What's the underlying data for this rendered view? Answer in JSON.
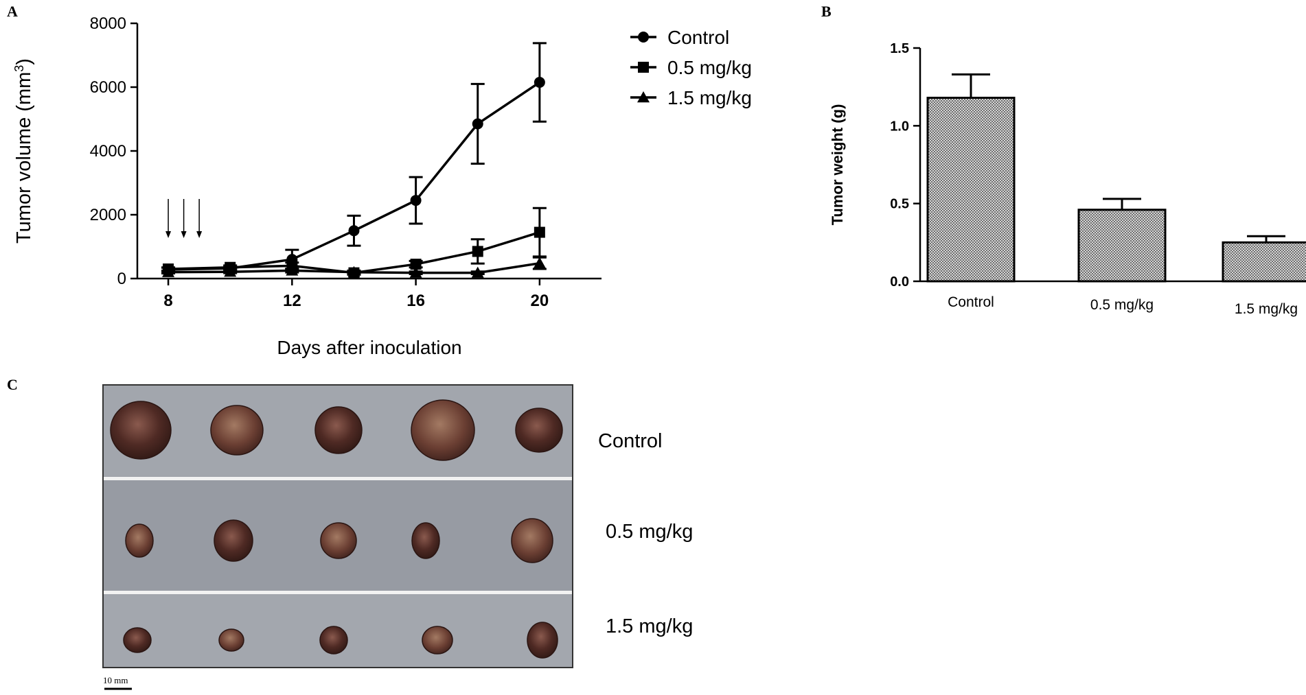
{
  "panels": {
    "a": "A",
    "b": "B",
    "c": "C"
  },
  "chart_data": [
    {
      "type": "line",
      "panel": "A",
      "title": "",
      "xlabel": "Days after inoculation",
      "ylabel": "Tumor volume (mm3)",
      "ylabel_main": "Tumor volume (mm",
      "ylabel_sup": "3",
      "ylabel_close": ")",
      "xlim": [
        7,
        22
      ],
      "ylim": [
        0,
        8000
      ],
      "xticks": [
        8,
        12,
        16,
        20
      ],
      "yticks": [
        0,
        2000,
        4000,
        6000,
        8000
      ],
      "arrows_at_days": [
        8,
        8.5,
        9
      ],
      "series": [
        {
          "name": "Control",
          "marker": "circle",
          "x": [
            8,
            10,
            12,
            14,
            16,
            18,
            20
          ],
          "values": [
            280,
            320,
            600,
            1500,
            2450,
            4850,
            6150
          ],
          "errors": [
            60,
            60,
            300,
            470,
            730,
            1250,
            1230
          ]
        },
        {
          "name": "0.5 mg/kg",
          "marker": "square",
          "x": [
            8,
            10,
            12,
            14,
            16,
            18,
            20
          ],
          "values": [
            300,
            350,
            400,
            180,
            450,
            850,
            1450
          ],
          "errors": [
            50,
            60,
            100,
            60,
            100,
            380,
            760
          ]
        },
        {
          "name": "1.5 mg/kg",
          "marker": "triangle",
          "x": [
            8,
            10,
            12,
            14,
            16,
            18,
            20
          ],
          "values": [
            200,
            210,
            250,
            200,
            180,
            180,
            480
          ],
          "errors": [
            40,
            40,
            60,
            50,
            40,
            40,
            180
          ]
        }
      ]
    },
    {
      "type": "bar",
      "panel": "B",
      "title": "",
      "xlabel": "",
      "ylabel": "Tumor weight (g)",
      "ylim": [
        0,
        1.5
      ],
      "yticks": [
        "0.0",
        "0.5",
        "1.0",
        "1.5"
      ],
      "categories": [
        "Control",
        "0.5 mg/kg",
        "1.5 mg/kg"
      ],
      "values": [
        1.18,
        0.46,
        0.25
      ],
      "errors": [
        0.15,
        0.07,
        0.04
      ]
    }
  ],
  "photo": {
    "rows": [
      {
        "label": "Control",
        "count": 5
      },
      {
        "label": "0.5 mg/kg",
        "count": 5
      },
      {
        "label": "1.5 mg/kg",
        "count": 5
      }
    ],
    "scale_bar_label": "10 mm"
  }
}
